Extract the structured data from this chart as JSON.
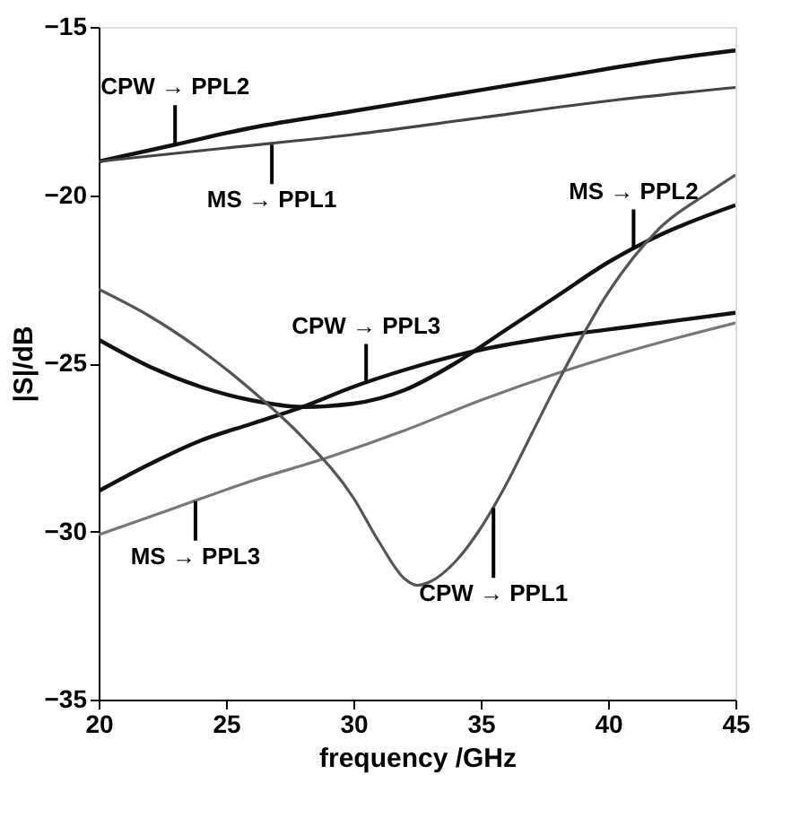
{
  "chart_data": {
    "type": "line",
    "xlabel": "frequency /GHz",
    "ylabel": "|S|/dB",
    "xlim": [
      20,
      45
    ],
    "ylim": [
      -35,
      -15
    ],
    "xticks": [
      20,
      25,
      30,
      35,
      40,
      45
    ],
    "yticks": [
      -35,
      -30,
      -25,
      -20,
      -15
    ],
    "grid": false,
    "marker": "none",
    "line_style": "solid",
    "series": [
      {
        "color": "#111111",
        "x": [
          20,
          23,
          26,
          30,
          34,
          38,
          42,
          45
        ],
        "values": [
          -19.0,
          -18.5,
          -18.0,
          -17.5,
          -17.0,
          -16.5,
          -16.0,
          -15.7
        ]
      },
      {
        "color": "#444444",
        "x": [
          20,
          25,
          30,
          35,
          40,
          45
        ],
        "values": [
          -19.0,
          -18.6,
          -18.2,
          -17.7,
          -17.2,
          -16.8
        ]
      },
      {
        "color": "#111111",
        "x": [
          20,
          22,
          24,
          26,
          28,
          30,
          32,
          34,
          36,
          38,
          40,
          42,
          45
        ],
        "values": [
          -24.3,
          -25.1,
          -25.7,
          -26.1,
          -26.3,
          -26.2,
          -25.8,
          -25.0,
          -24.0,
          -23.0,
          -22.0,
          -21.2,
          -20.3
        ]
      },
      {
        "color": "#111111",
        "x": [
          20,
          22,
          24,
          26,
          28,
          30,
          32,
          35,
          38,
          41,
          45
        ],
        "values": [
          -28.8,
          -28.0,
          -27.3,
          -26.8,
          -26.3,
          -25.7,
          -25.2,
          -24.6,
          -24.2,
          -23.9,
          -23.5
        ]
      },
      {
        "color": "#777777",
        "x": [
          20,
          23,
          26,
          29,
          32,
          35,
          38,
          41,
          45
        ],
        "values": [
          -30.1,
          -29.3,
          -28.5,
          -27.8,
          -27.0,
          -26.1,
          -25.3,
          -24.6,
          -23.8
        ]
      },
      {
        "color": "#555555",
        "x": [
          20,
          22,
          24,
          26,
          28,
          30,
          31,
          32,
          32.5,
          33,
          34,
          35,
          36,
          37,
          38,
          40,
          42,
          44,
          45
        ],
        "values": [
          -22.8,
          -23.6,
          -24.6,
          -25.8,
          -27.2,
          -29.0,
          -30.3,
          -31.4,
          -31.6,
          -31.5,
          -30.9,
          -29.9,
          -28.6,
          -27.1,
          -25.6,
          -22.9,
          -21.0,
          -19.9,
          -19.4
        ]
      }
    ],
    "annotations": [
      {
        "text": "CPW → PPL2",
        "x": 23,
        "y": -18.5
      },
      {
        "text": "MS → PPL1",
        "x": 26.8,
        "y": -18.5
      },
      {
        "text": "MS → PPL2",
        "x": 41,
        "y": -21.6
      },
      {
        "text": "CPW → PPL3",
        "x": 30.5,
        "y": -25.6
      },
      {
        "text": "MS → PPL3",
        "x": 23.8,
        "y": -29.1
      },
      {
        "text": "CPW → PPL1",
        "x": 35.5,
        "y": -29.3
      }
    ]
  }
}
